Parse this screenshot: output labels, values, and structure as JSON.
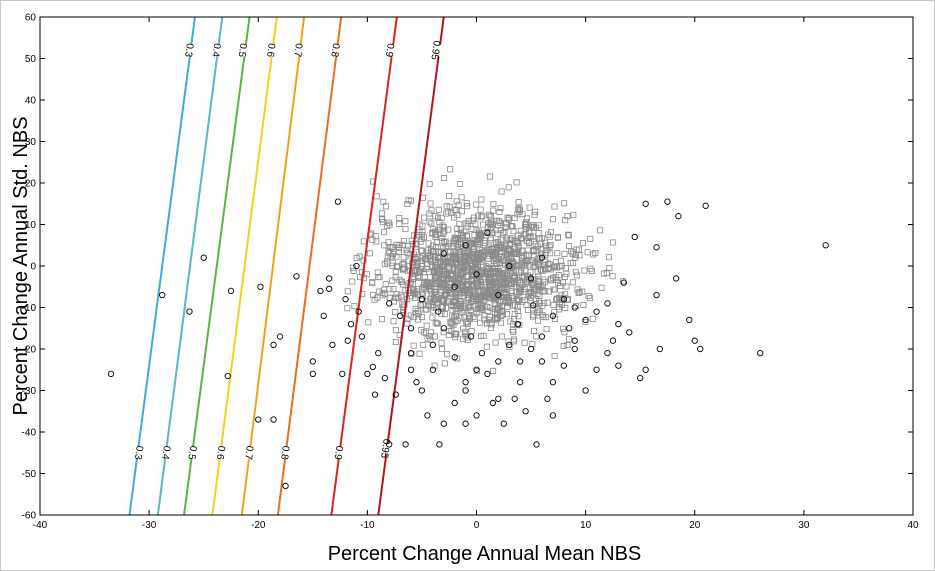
{
  "chart_data": {
    "type": "scatter",
    "title": "",
    "xlabel": "Percent Change Annual Mean NBS",
    "ylabel": "Percent Change Annual Std. NBS",
    "xlim": [
      -40,
      40
    ],
    "ylim": [
      -60,
      60
    ],
    "xticks": [
      -40,
      -30,
      -20,
      -10,
      0,
      10,
      20,
      30,
      40
    ],
    "yticks": [
      -60,
      -50,
      -40,
      -30,
      -20,
      -10,
      0,
      10,
      20,
      30,
      40,
      50,
      60
    ],
    "grid": false,
    "contours": [
      {
        "level": "0.3",
        "color": "#3fa9e0",
        "points": [
          [
            -31.8,
            -60
          ],
          [
            -25.8,
            60
          ]
        ],
        "labels": [
          [
            -30.9,
            -45
          ],
          [
            -26.3,
            52
          ]
        ]
      },
      {
        "level": "0.4",
        "color": "#5bb6c6",
        "points": [
          [
            -29.2,
            -60
          ],
          [
            -23.3,
            60
          ]
        ],
        "labels": [
          [
            -28.4,
            -45
          ],
          [
            -23.8,
            52
          ]
        ]
      },
      {
        "level": "0.5",
        "color": "#59b447",
        "points": [
          [
            -26.8,
            -60
          ],
          [
            -20.8,
            60
          ]
        ],
        "labels": [
          [
            -26.0,
            -45
          ],
          [
            -21.4,
            52
          ]
        ]
      },
      {
        "level": "0.6",
        "color": "#f2d21b",
        "points": [
          [
            -24.2,
            -60
          ],
          [
            -18.3,
            60
          ]
        ],
        "labels": [
          [
            -23.4,
            -45
          ],
          [
            -18.8,
            52
          ]
        ]
      },
      {
        "level": "0.7",
        "color": "#f5a017",
        "points": [
          [
            -21.5,
            -60
          ],
          [
            -15.8,
            60
          ]
        ],
        "labels": [
          [
            -20.8,
            -45
          ],
          [
            -16.3,
            52
          ]
        ]
      },
      {
        "level": "0.8",
        "color": "#e86f1d",
        "points": [
          [
            -18.2,
            -60
          ],
          [
            -12.4,
            60
          ]
        ],
        "labels": [
          [
            -17.5,
            -45
          ],
          [
            -12.9,
            52
          ]
        ]
      },
      {
        "level": "0.9",
        "color": "#d7261e",
        "points": [
          [
            -13.3,
            -60
          ],
          [
            -7.3,
            60
          ]
        ],
        "labels": [
          [
            -12.6,
            -45
          ],
          [
            -7.9,
            52
          ]
        ]
      },
      {
        "level": "0.95",
        "color": "#b0171d",
        "points": [
          [
            -9.0,
            -60
          ],
          [
            -3.0,
            60
          ]
        ],
        "labels": [
          [
            -8.3,
            -44
          ],
          [
            -3.7,
            52
          ]
        ]
      }
    ],
    "series": [
      {
        "marker": "circle",
        "color": "#000000",
        "points": [
          [
            -33.5,
            -26
          ],
          [
            -28.8,
            -7
          ],
          [
            -26.3,
            -11
          ],
          [
            -25,
            2
          ],
          [
            -22.5,
            -6
          ],
          [
            -22.8,
            -26.5
          ],
          [
            -20,
            -37
          ],
          [
            -19.8,
            -5
          ],
          [
            -18,
            -17
          ],
          [
            -18.6,
            -19
          ],
          [
            -18.6,
            -37
          ],
          [
            -17.5,
            -53
          ],
          [
            -16.5,
            -2.5
          ],
          [
            -15,
            -23
          ],
          [
            -14.3,
            -6
          ],
          [
            -13.5,
            -5.5
          ],
          [
            -13.2,
            -19
          ],
          [
            -12.3,
            -26
          ],
          [
            -11.5,
            -14
          ],
          [
            -11.8,
            -18
          ],
          [
            -10.8,
            -11
          ],
          [
            -12.7,
            15.5
          ],
          [
            -13.5,
            -3
          ],
          [
            -10,
            -26
          ],
          [
            -9.3,
            -31
          ],
          [
            -8.4,
            -27
          ],
          [
            -9.5,
            -24.3
          ],
          [
            -8,
            -43
          ],
          [
            -7.4,
            -31
          ],
          [
            -6.5,
            -43
          ],
          [
            -3.4,
            -43
          ],
          [
            -6,
            -25
          ],
          [
            -5,
            -30
          ],
          [
            -4.5,
            -36
          ],
          [
            -3,
            -38
          ],
          [
            -2,
            -33
          ],
          [
            -1,
            -38
          ],
          [
            0,
            -36
          ],
          [
            1.5,
            -33
          ],
          [
            2.5,
            -38
          ],
          [
            3.5,
            -32
          ],
          [
            4.5,
            -35
          ],
          [
            5.5,
            -43
          ],
          [
            6.5,
            -32
          ],
          [
            7,
            -28
          ],
          [
            8,
            -24
          ],
          [
            9,
            -20
          ],
          [
            11,
            -25
          ],
          [
            12,
            -21
          ],
          [
            13,
            -24
          ],
          [
            15,
            -27
          ],
          [
            15.5,
            -25
          ],
          [
            16.5,
            -7
          ],
          [
            16.8,
            -20
          ],
          [
            18.3,
            -3
          ],
          [
            19.5,
            -13
          ],
          [
            20,
            -18
          ],
          [
            20.5,
            -20
          ],
          [
            21,
            14.5
          ],
          [
            18.5,
            12
          ],
          [
            17.5,
            15.5
          ],
          [
            15.5,
            15
          ],
          [
            16.5,
            4.5
          ],
          [
            14.5,
            7
          ],
          [
            26,
            -21
          ],
          [
            32,
            5
          ],
          [
            -4,
            -19
          ],
          [
            -3,
            -15
          ],
          [
            -2,
            -22
          ],
          [
            -1,
            -28
          ],
          [
            0,
            -25
          ],
          [
            1,
            -26
          ],
          [
            2,
            -23
          ],
          [
            3,
            -19
          ],
          [
            4,
            -23
          ],
          [
            5,
            -20
          ],
          [
            6,
            -17
          ],
          [
            7,
            -12
          ],
          [
            8,
            -8
          ],
          [
            9,
            -10
          ],
          [
            10,
            -13
          ],
          [
            11,
            -11
          ],
          [
            12,
            -9
          ],
          [
            13,
            -14
          ],
          [
            14,
            -16
          ],
          [
            9,
            -18
          ],
          [
            6,
            -23
          ],
          [
            4,
            -28
          ],
          [
            -1,
            -30
          ],
          [
            -6,
            -15
          ],
          [
            -7,
            -12
          ],
          [
            -8,
            -9
          ],
          [
            -5,
            -8
          ],
          [
            -2,
            -5
          ],
          [
            0,
            -2
          ],
          [
            2,
            -7
          ],
          [
            3,
            0
          ],
          [
            5,
            -3
          ],
          [
            6,
            2
          ],
          [
            -3,
            3
          ],
          [
            -1,
            5
          ],
          [
            1,
            8
          ],
          [
            -6,
            -21
          ],
          [
            -4,
            -25
          ],
          [
            2,
            -32
          ],
          [
            7,
            -36
          ],
          [
            10,
            -30
          ],
          [
            -11,
            0
          ],
          [
            -12,
            -8
          ],
          [
            -14,
            -12
          ],
          [
            -15,
            -26
          ],
          [
            -10.5,
            -17
          ],
          [
            -9,
            -21
          ],
          [
            12.5,
            -18
          ],
          [
            13.5,
            -4
          ],
          [
            3.8,
            -14
          ],
          [
            5.2,
            -9.5
          ],
          [
            8.5,
            -15
          ],
          [
            -3.5,
            -11
          ],
          [
            -5.5,
            -28
          ],
          [
            0.5,
            -21
          ],
          [
            -0.5,
            -17
          ]
        ]
      },
      {
        "marker": "square",
        "color": "#8a8a8a",
        "points": []
      }
    ]
  }
}
